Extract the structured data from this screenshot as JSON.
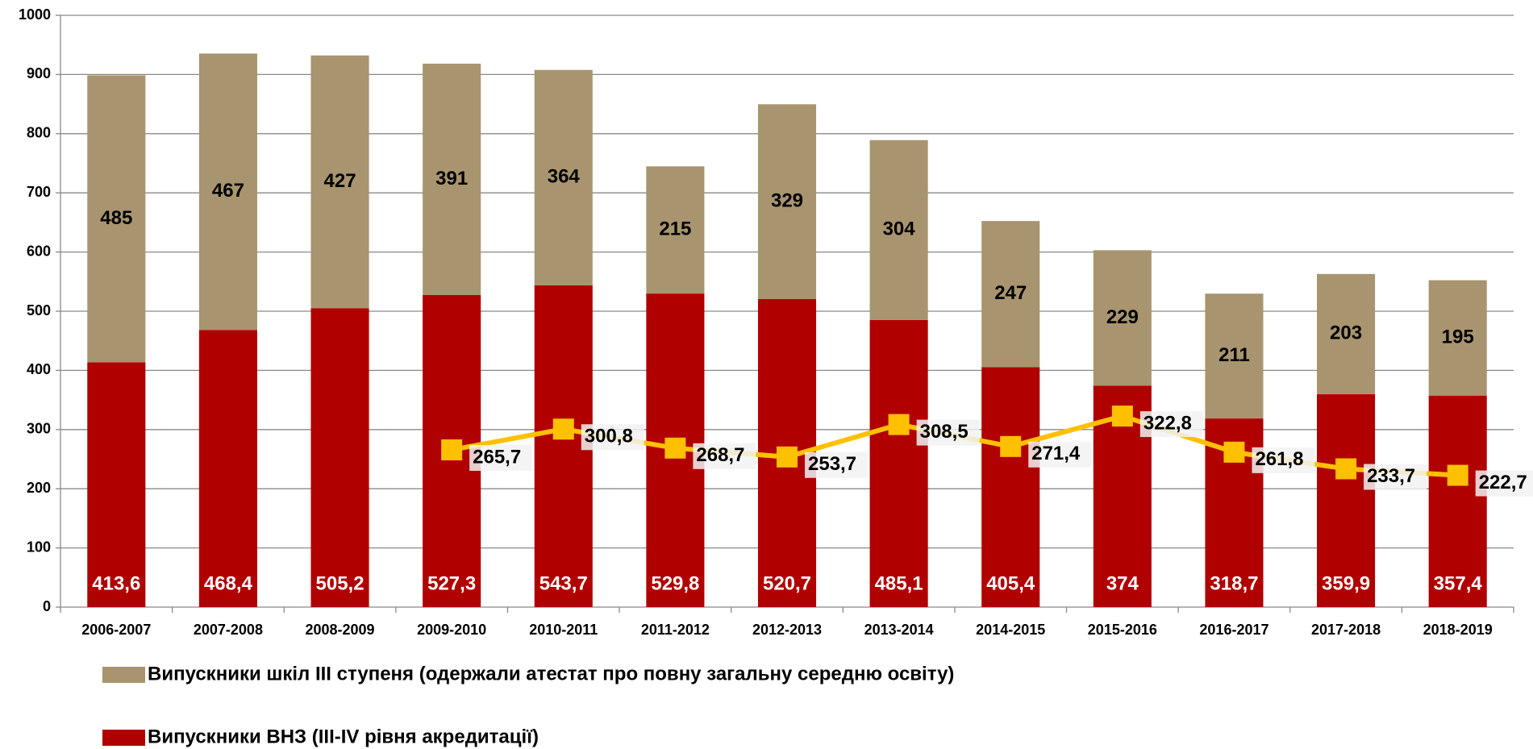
{
  "chart_data": {
    "type": "bar",
    "stacked": true,
    "grid": true,
    "categories": [
      "2006-2007",
      "2007-2008",
      "2008-2009",
      "2009-2010",
      "2010-2011",
      "2011-2012",
      "2012-2013",
      "2013-2014",
      "2014-2015",
      "2015-2016",
      "2016-2017",
      "2017-2018",
      "2018-2019"
    ],
    "series": [
      {
        "name": "Випускники ВНЗ (III-IV рівня акредитації)",
        "type": "bar",
        "color": "#b00000",
        "label_color": "#ffffff",
        "values": [
          413.6,
          468.4,
          505.2,
          527.3,
          543.7,
          529.8,
          520.7,
          485.1,
          405.4,
          374,
          318.7,
          359.9,
          357.4
        ],
        "value_labels": [
          "413,6",
          "468,4",
          "505,2",
          "527,3",
          "543,7",
          "529,8",
          "520,7",
          "485,1",
          "405,4",
          "374",
          "318,7",
          "359,9",
          "357,4"
        ]
      },
      {
        "name": "Випускники шкіл III ступеня (одержали атестат про повну загальну середню освіту)",
        "type": "bar",
        "color": "#a8946e",
        "label_color": "#000000",
        "values": [
          485,
          467,
          427,
          391,
          364,
          215,
          329,
          304,
          247,
          229,
          211,
          203,
          195
        ]
      },
      {
        "type": "line",
        "color": "#ffc000",
        "label_color": "#000000",
        "values": [
          null,
          null,
          null,
          265.7,
          300.8,
          268.7,
          253.7,
          308.5,
          271.4,
          322.8,
          261.8,
          233.7,
          222.7
        ],
        "value_labels": [
          null,
          null,
          null,
          "265,7",
          "300,8",
          "268,7",
          "253,7",
          "308,5",
          "271,4",
          "322,8",
          "261,8",
          "233,7",
          "222,7"
        ]
      }
    ],
    "ylim": [
      0,
      1000
    ],
    "yticks": [
      0,
      100,
      200,
      300,
      400,
      500,
      600,
      700,
      800,
      900,
      1000
    ]
  }
}
